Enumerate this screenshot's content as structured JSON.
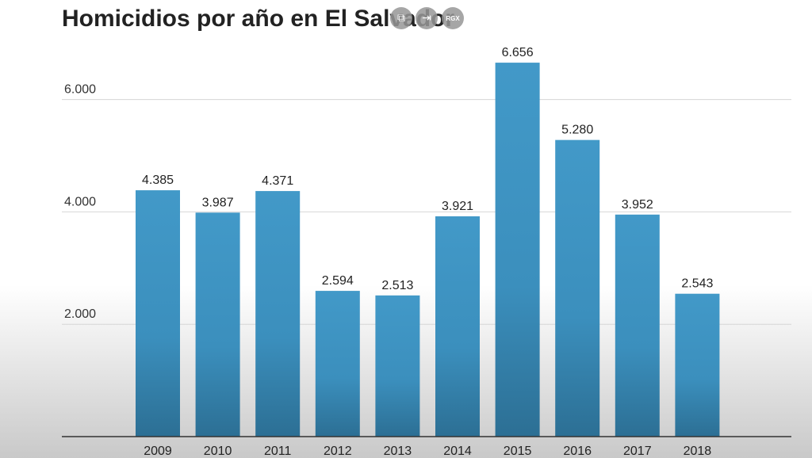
{
  "chart_data": {
    "type": "bar",
    "title": "Homicidios por año en El Salvador",
    "categories": [
      "2009",
      "2010",
      "2011",
      "2012",
      "2013",
      "2014",
      "2015",
      "2016",
      "2017",
      "2018"
    ],
    "values": [
      4385,
      3987,
      4371,
      2594,
      2513,
      3921,
      6656,
      5280,
      3952,
      2543
    ],
    "value_labels": [
      "4.385",
      "3.987",
      "4.371",
      "2.594",
      "2.513",
      "3.921",
      "6.656",
      "5.280",
      "3.952",
      "2.543"
    ],
    "yticks": [
      2000,
      4000,
      6000
    ],
    "ytick_labels": [
      "2.000",
      "4.000",
      "6.000"
    ],
    "ylim": [
      0,
      7000
    ],
    "xlabel": "",
    "ylabel": "",
    "grid": true,
    "bar_color": "#3b8fbd"
  },
  "overlay": {
    "buttons": [
      {
        "name": "share-icon",
        "glyph": "⧉"
      },
      {
        "name": "expand-icon",
        "glyph": "⇥"
      },
      {
        "name": "rgx-badge",
        "glyph": "RGX"
      }
    ]
  }
}
